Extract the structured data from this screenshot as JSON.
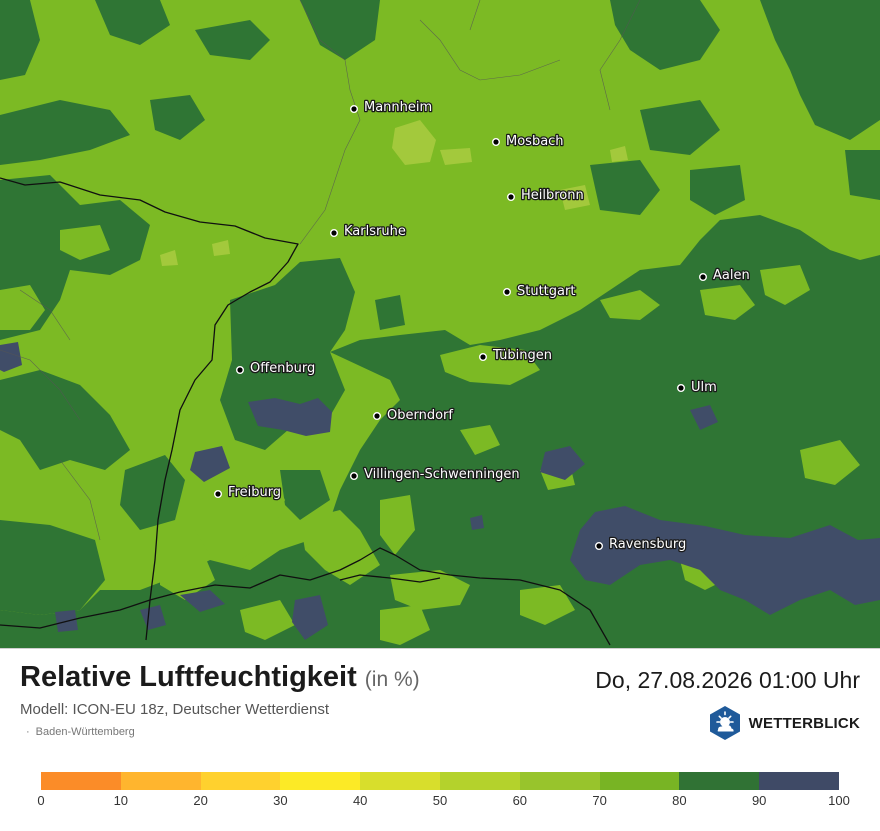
{
  "map": {
    "palette": {
      "band_70_80": "#7cba24",
      "band_60_70": "#a3c93c",
      "band_80_90": "#2f7534",
      "band_90_100": "#404d68",
      "border": "#101010"
    },
    "cities": [
      {
        "name": "Mannheim"
      },
      {
        "name": "Mosbach"
      },
      {
        "name": "Heilbronn"
      },
      {
        "name": "Karlsruhe"
      },
      {
        "name": "Aalen"
      },
      {
        "name": "Stuttgart"
      },
      {
        "name": "Tübingen"
      },
      {
        "name": "Offenburg"
      },
      {
        "name": "Ulm"
      },
      {
        "name": "Oberndorf"
      },
      {
        "name": "Villingen-Schwenningen"
      },
      {
        "name": "Freiburg"
      },
      {
        "name": "Ravensburg"
      }
    ]
  },
  "footer": {
    "title": "Relative Luftfeuchtigkeit",
    "unit": "(in %)",
    "datetime": "Do, 27.08.2026 01:00 Uhr",
    "model": "Modell: ICON-EU 18z, Deutscher Wetterdienst",
    "region": "Baden-Württemberg",
    "brand": "WETTERBLICK",
    "brand_icon": "weather-sun-cloud-icon"
  },
  "legend": {
    "colors": [
      "#fb8c28",
      "#ffb52e",
      "#ffd12e",
      "#fcea26",
      "#d8de2c",
      "#b4d22c",
      "#98c42c",
      "#78b424",
      "#307234",
      "#3f4a66"
    ],
    "ticks": [
      "0",
      "10",
      "20",
      "30",
      "40",
      "50",
      "60",
      "70",
      "80",
      "90",
      "100"
    ]
  }
}
